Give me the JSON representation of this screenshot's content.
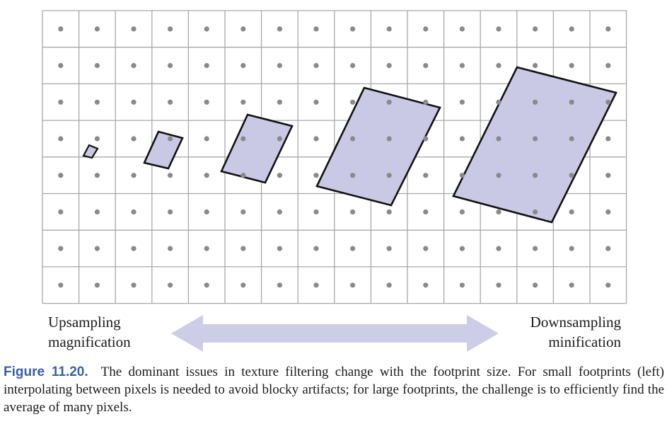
{
  "figure": {
    "grid": {
      "columns": 16,
      "rows": 8,
      "sample_points": true
    },
    "footprints": [
      {
        "label": "tiny footprint"
      },
      {
        "label": "small footprint"
      },
      {
        "label": "medium footprint"
      },
      {
        "label": "large footprint"
      },
      {
        "label": "largest footprint"
      }
    ],
    "left_label": {
      "line1": "Upsampling",
      "line2": "magnification"
    },
    "right_label": {
      "line1": "Downsampling",
      "line2": "minification"
    },
    "colors": {
      "grid_line": "#a8a8a8",
      "sample_dot": "#8a8a8a",
      "footprint_fill": "#c9c9e6",
      "footprint_stroke": "#111111",
      "arrow": "#cdcde8",
      "caption_label": "#3a5ea8"
    }
  },
  "caption": {
    "label": "Figure 11.20.",
    "text": "The dominant issues in texture filtering change with the footprint size. For small footprints (left) interpolating between pixels is needed to avoid blocky artifacts; for large footprints, the challenge is to efficiently find the average of many pixels."
  }
}
